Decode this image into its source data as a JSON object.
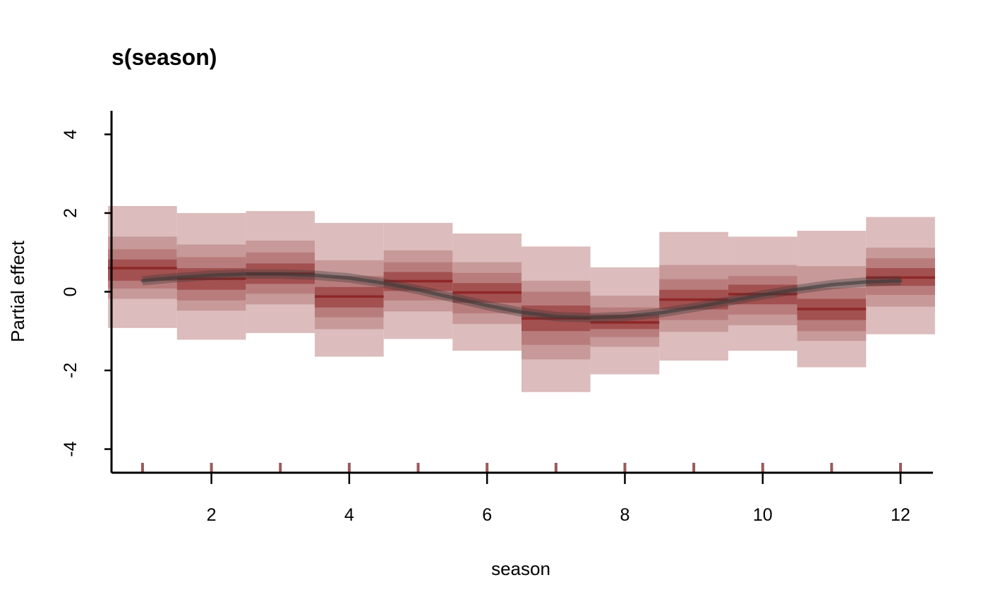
{
  "chart_data": {
    "type": "area",
    "title": "s(season)",
    "xlabel": "season",
    "ylabel": "Partial effect",
    "xlim": [
      0.55,
      12.45
    ],
    "ylim": [
      -4.6,
      4.6
    ],
    "x_ticks": [
      2,
      4,
      6,
      8,
      10,
      12
    ],
    "y_ticks": [
      -4,
      -2,
      0,
      2,
      4
    ],
    "x_tick_labels": [
      "2",
      "4",
      "6",
      "8",
      "10",
      "12"
    ],
    "y_tick_labels": [
      "-4",
      "-2",
      "0",
      "2",
      "4"
    ],
    "grid": false,
    "rug_x": [
      1,
      2,
      3,
      4,
      5,
      6,
      7,
      8,
      9,
      10,
      11,
      12
    ],
    "colors": {
      "band_outer": "#dcbcbc",
      "band_2": "#c79999",
      "band_3": "#b97c7c",
      "band_inner": "#a25050",
      "median": "#8f2727",
      "smooth": "#3a3a3a",
      "rug": "#9a5a5a",
      "axis": "#000000"
    },
    "bins": [
      {
        "season": 1,
        "q05": -0.92,
        "q20": -0.18,
        "q30": 0.08,
        "q40": 0.28,
        "median": 0.6,
        "q60": 0.82,
        "q70": 1.08,
        "q80": 1.4,
        "q95": 2.18
      },
      {
        "season": 2,
        "q05": -1.22,
        "q20": -0.48,
        "q30": -0.22,
        "q40": 0.05,
        "median": 0.33,
        "q60": 0.6,
        "q70": 0.88,
        "q80": 1.2,
        "q95": 2.0
      },
      {
        "season": 3,
        "q05": -1.05,
        "q20": -0.32,
        "q30": -0.05,
        "q40": 0.2,
        "median": 0.46,
        "q60": 0.72,
        "q70": 1.0,
        "q80": 1.3,
        "q95": 2.05
      },
      {
        "season": 4,
        "q05": -1.65,
        "q20": -0.95,
        "q30": -0.65,
        "q40": -0.4,
        "median": -0.12,
        "q60": 0.12,
        "q70": 0.4,
        "q80": 0.8,
        "q95": 1.75
      },
      {
        "season": 5,
        "q05": -1.2,
        "q20": -0.5,
        "q30": -0.22,
        "q40": 0.02,
        "median": 0.27,
        "q60": 0.5,
        "q70": 0.75,
        "q80": 1.05,
        "q95": 1.75
      },
      {
        "season": 6,
        "q05": -1.5,
        "q20": -0.82,
        "q30": -0.55,
        "q40": -0.28,
        "median": -0.02,
        "q60": 0.22,
        "q70": 0.48,
        "q80": 0.75,
        "q95": 1.48
      },
      {
        "season": 7,
        "q05": -2.55,
        "q20": -1.72,
        "q30": -1.35,
        "q40": -1.0,
        "median": -0.68,
        "q60": -0.35,
        "q70": 0.0,
        "q80": 0.28,
        "q95": 1.15
      },
      {
        "season": 8,
        "q05": -2.1,
        "q20": -1.4,
        "q30": -1.15,
        "q40": -0.95,
        "median": -0.78,
        "q60": -0.58,
        "q70": -0.4,
        "q80": -0.1,
        "q95": 0.62
      },
      {
        "season": 9,
        "q05": -1.75,
        "q20": -1.02,
        "q30": -0.72,
        "q40": -0.45,
        "median": -0.2,
        "q60": 0.05,
        "q70": 0.32,
        "q80": 0.68,
        "q95": 1.52
      },
      {
        "season": 10,
        "q05": -1.5,
        "q20": -0.85,
        "q30": -0.58,
        "q40": -0.32,
        "median": -0.06,
        "q60": 0.18,
        "q70": 0.4,
        "q80": 0.68,
        "q95": 1.4
      },
      {
        "season": 11,
        "q05": -1.92,
        "q20": -1.25,
        "q30": -1.0,
        "q40": -0.72,
        "median": -0.44,
        "q60": -0.18,
        "q70": 0.1,
        "q80": 0.65,
        "q95": 1.55
      },
      {
        "season": 12,
        "q05": -1.08,
        "q20": -0.38,
        "q30": -0.08,
        "q40": 0.15,
        "median": 0.36,
        "q60": 0.6,
        "q70": 0.85,
        "q80": 1.12,
        "q95": 1.9
      }
    ],
    "smooth": {
      "x": [
        1.0,
        1.5,
        2.0,
        2.5,
        3.0,
        3.5,
        4.0,
        4.5,
        5.0,
        5.5,
        6.0,
        6.5,
        7.0,
        7.5,
        8.0,
        8.5,
        9.0,
        9.5,
        10.0,
        10.5,
        11.0,
        11.5,
        12.0
      ],
      "y": [
        0.28,
        0.36,
        0.42,
        0.45,
        0.45,
        0.42,
        0.35,
        0.22,
        0.05,
        -0.15,
        -0.35,
        -0.52,
        -0.63,
        -0.66,
        -0.63,
        -0.54,
        -0.4,
        -0.24,
        -0.08,
        0.06,
        0.18,
        0.25,
        0.28
      ],
      "band": 0.12
    }
  }
}
